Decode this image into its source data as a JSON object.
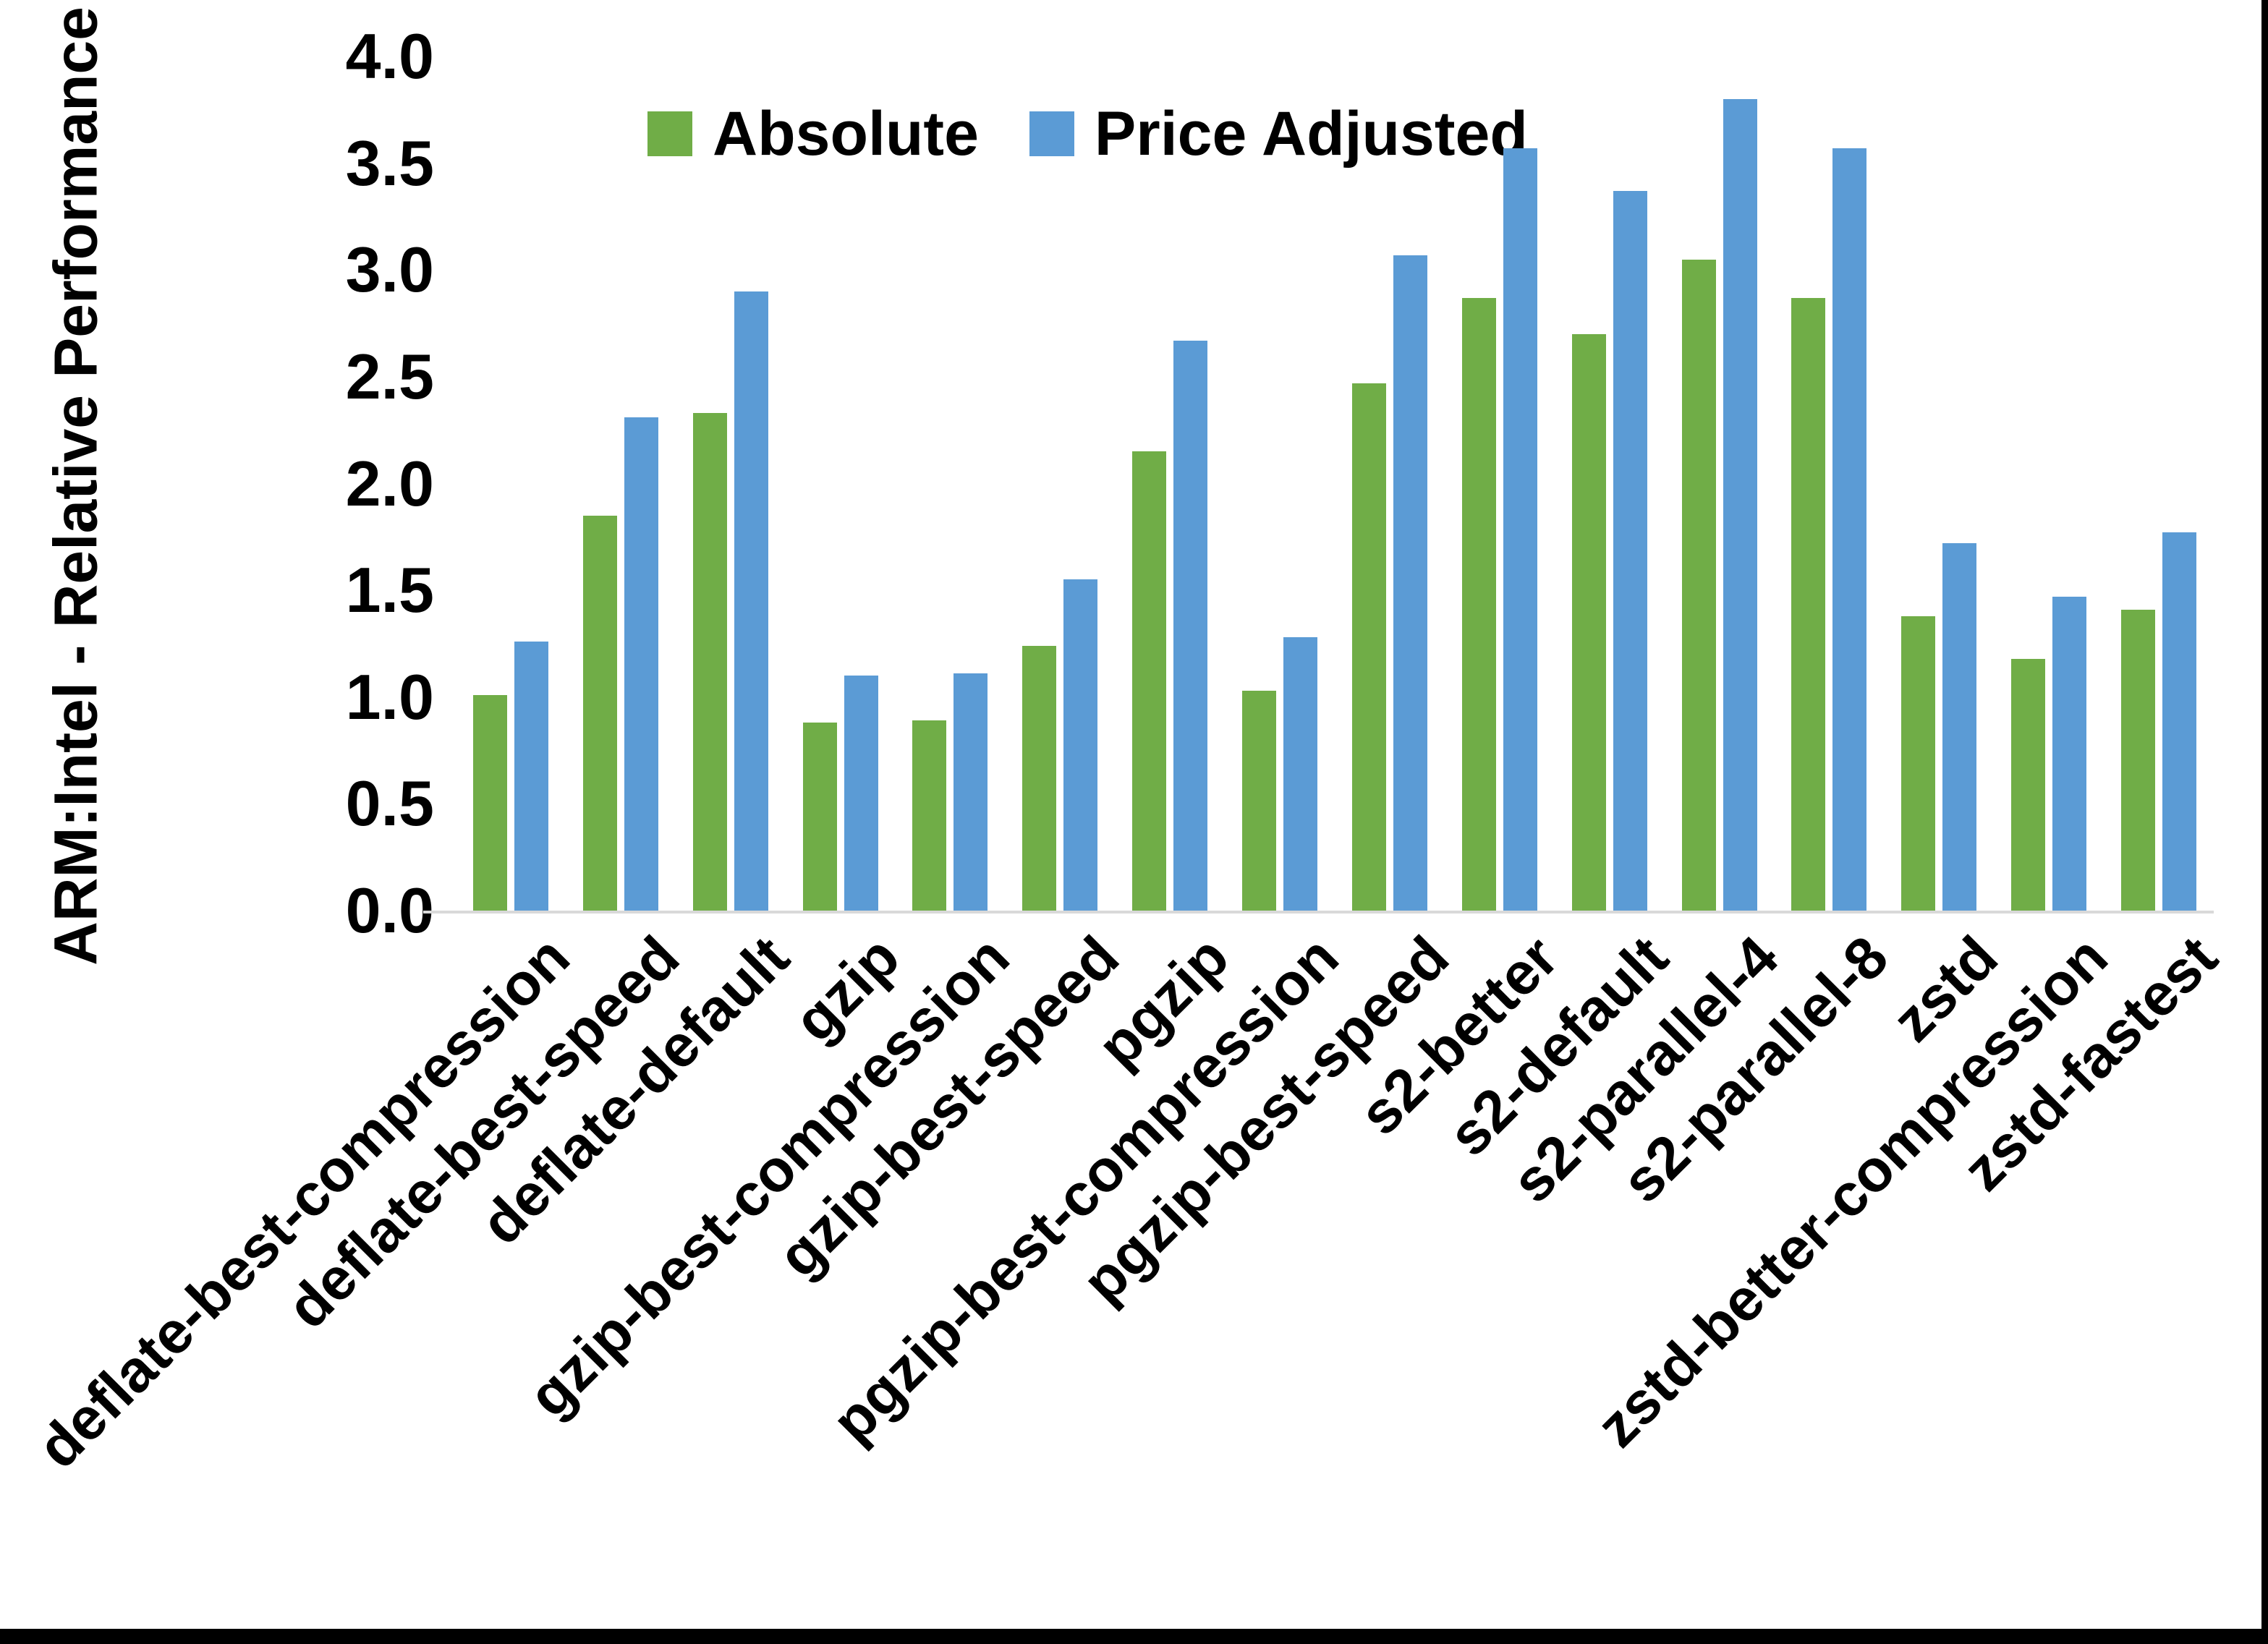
{
  "page": {
    "background": "#ffffff",
    "edge_border_color": "#000000"
  },
  "chart_data": {
    "type": "bar",
    "title": "",
    "xlabel": "",
    "ylabel": "ARM:Intel - Relative Performance",
    "ylim": [
      0.0,
      4.0
    ],
    "ytick_step": 0.5,
    "ytick_labels": [
      "0.0",
      "0.5",
      "1.0",
      "1.5",
      "2.0",
      "2.5",
      "3.0",
      "3.5",
      "4.0"
    ],
    "grid": false,
    "axis_line_color": "#d9d9d9",
    "legend_position": "top-center",
    "categories": [
      "deflate-best-compression",
      "deflate-best-speed",
      "deflate-default",
      "gzip",
      "gzip-best-compression",
      "gzip-best-speed",
      "pgzip",
      "pgzip-best-compression",
      "pgzip-best-speed",
      "s2-better",
      "s2-default",
      "s2-parallel-4",
      "s2-parallel-8",
      "zstd",
      "zstd-better-compression",
      "zstd-fastest"
    ],
    "series": [
      {
        "name": "Absolute",
        "color": "#70AD47",
        "values": [
          1.01,
          1.85,
          2.33,
          0.88,
          0.89,
          1.24,
          2.15,
          1.03,
          2.47,
          2.87,
          2.7,
          3.05,
          2.87,
          1.38,
          1.18,
          1.41
        ]
      },
      {
        "name": "Price Adjusted",
        "color": "#5B9BD5",
        "values": [
          1.26,
          2.31,
          2.9,
          1.1,
          1.11,
          1.55,
          2.67,
          1.28,
          3.07,
          3.57,
          3.37,
          3.8,
          3.57,
          1.72,
          1.47,
          1.77
        ]
      }
    ]
  }
}
